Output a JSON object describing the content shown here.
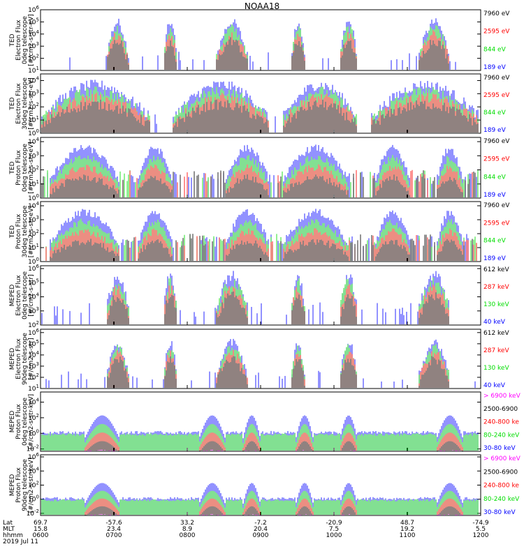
{
  "title": "NOAA18",
  "colors": {
    "black": "#000000",
    "blue": "#0000ff",
    "green": "#00dd00",
    "red": "#ff0000",
    "magenta": "#ff00ff"
  },
  "chart_data": [
    {
      "type": "line",
      "ylabel": [
        "TED",
        "Electron Flux",
        "0deg telescope",
        "[#/cm2-s-str-eV]"
      ],
      "yticks": [
        "10^1",
        "10^2",
        "10^3",
        "10^4",
        "10^5",
        "10^6"
      ],
      "ylim": [
        1,
        6
      ],
      "legend": [
        {
          "label": "7960 eV",
          "color": "black"
        },
        {
          "label": "2595 eV",
          "color": "red"
        },
        {
          "label": "844 eV",
          "color": "green"
        },
        {
          "label": "189 eV",
          "color": "blue"
        }
      ]
    },
    {
      "type": "line",
      "ylabel": [
        "TED",
        "Electron Flux",
        "30deg telescope",
        "[#/cm2-s-str-eV]"
      ],
      "yticks": [
        "10^0",
        "10^1",
        "10^2",
        "10^3",
        "10^4"
      ],
      "ylim": [
        0,
        4.5
      ],
      "legend": [
        {
          "label": "7960 eV",
          "color": "black"
        },
        {
          "label": "2595 eV",
          "color": "red"
        },
        {
          "label": "844 eV",
          "color": "green"
        },
        {
          "label": "189 eV",
          "color": "blue"
        }
      ]
    },
    {
      "type": "line",
      "ylabel": [
        "TED",
        "Proton Flux",
        "0deg telescope",
        "[#/cm2-s-str-eV]"
      ],
      "yticks": [
        "10^0",
        "10^1",
        "10^2",
        "10^3",
        "10^4"
      ],
      "ylim": [
        0,
        4.3
      ],
      "legend": [
        {
          "label": "7960 eV",
          "color": "black"
        },
        {
          "label": "2595 eV",
          "color": "red"
        },
        {
          "label": "844 eV",
          "color": "green"
        },
        {
          "label": "189 eV",
          "color": "blue"
        }
      ]
    },
    {
      "type": "line",
      "ylabel": [
        "TED",
        "Proton Flux",
        "30deg telescope",
        "[#/cm2-s-str-eV]"
      ],
      "yticks": [
        "10^0",
        "10^1",
        "10^2",
        "10^3",
        "10^4"
      ],
      "ylim": [
        0,
        4.3
      ],
      "legend": [
        {
          "label": "7960 eV",
          "color": "black"
        },
        {
          "label": "2595 eV",
          "color": "red"
        },
        {
          "label": "844 eV",
          "color": "green"
        },
        {
          "label": "189 eV",
          "color": "blue"
        }
      ]
    },
    {
      "type": "line",
      "ylabel": [
        "MEPED",
        "Electron Flux",
        "0deg telescope",
        "[#/cm2-s-str]"
      ],
      "yticks": [
        "10^2",
        "10^3",
        "10^4",
        "10^5",
        "10^6"
      ],
      "ylim": [
        2,
        6.2
      ],
      "legend": [
        {
          "label": "612 keV",
          "color": "black"
        },
        {
          "label": "287 keV",
          "color": "red"
        },
        {
          "label": "130 keV",
          "color": "green"
        },
        {
          "label": "40 keV",
          "color": "blue"
        }
      ]
    },
    {
      "type": "line",
      "ylabel": [
        "MEPED",
        "Electron Flux",
        "90deg telescope",
        "[#/cm2-s-str]"
      ],
      "yticks": [
        "10^1",
        "10^2",
        "10^3",
        "10^4",
        "10^5",
        "10^6"
      ],
      "ylim": [
        1,
        6.3
      ],
      "legend": [
        {
          "label": "612 keV",
          "color": "black"
        },
        {
          "label": "287 keV",
          "color": "red"
        },
        {
          "label": "130 keV",
          "color": "green"
        },
        {
          "label": "40 keV",
          "color": "blue"
        }
      ]
    },
    {
      "type": "line",
      "ylabel": [
        "MEPED",
        "Proton Flux",
        "0deg telescope",
        "[#/cm2-s-str-keV]"
      ],
      "yticks": [
        "10^-2",
        "10^0",
        "10^2",
        "10^4"
      ],
      "ylim": [
        -2.3,
        5.3
      ],
      "legend": [
        {
          "label": "> 6900 keV",
          "color": "magenta"
        },
        {
          "label": "2500-6900",
          "color": "black"
        },
        {
          "label": "240-800 ke",
          "color": "red"
        },
        {
          "label": "80-240 keV",
          "color": "green"
        },
        {
          "label": "30-80 keV",
          "color": "blue"
        }
      ]
    },
    {
      "type": "line",
      "ylabel": [
        "MEPED",
        "Proton Flux",
        "90deg telescope",
        "[#/cm2-s-str-keV]"
      ],
      "yticks": [
        "10^-2",
        "10^0",
        "10^2",
        "10^4",
        "10^6"
      ],
      "ylim": [
        -2.3,
        6.3
      ],
      "legend": [
        {
          "label": "> 6900 keV",
          "color": "magenta"
        },
        {
          "label": "2500-6900",
          "color": "black"
        },
        {
          "label": "240-800 ke",
          "color": "red"
        },
        {
          "label": "80-240 keV",
          "color": "green"
        },
        {
          "label": "30-80 keV",
          "color": "blue"
        }
      ]
    }
  ],
  "x_axis": {
    "row_labels": [
      "Lat",
      "MLT",
      "hhmm"
    ],
    "ticks": [
      {
        "lat": "69.7",
        "mlt": "15.8",
        "hhmm": "0600"
      },
      {
        "lat": "-57.6",
        "mlt": "23.4",
        "hhmm": "0700"
      },
      {
        "lat": "33.2",
        "mlt": "8.9",
        "hhmm": "0800"
      },
      {
        "lat": "-7.2",
        "mlt": "20.4",
        "hhmm": "0900"
      },
      {
        "lat": "-20.9",
        "mlt": "7.5",
        "hhmm": "1000"
      },
      {
        "lat": "48.7",
        "mlt": "19.2",
        "hhmm": "1100"
      },
      {
        "lat": "-74.9",
        "mlt": "5.5",
        "hhmm": "1200"
      }
    ],
    "date": "2019 Jul 11"
  }
}
